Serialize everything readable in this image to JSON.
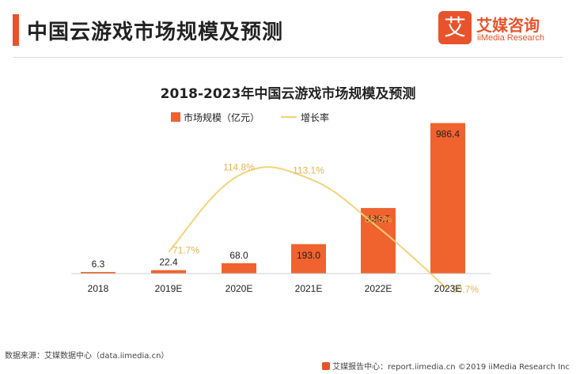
{
  "header": {
    "title": "中国云游戏市场规模及预测",
    "brand_logo_char": "艾",
    "brand_name": "艾媒咨询",
    "brand_en": "iiMedia Research"
  },
  "colors": {
    "accent": "#e8532b",
    "bar": "#f0622e",
    "line": "#f5d27a",
    "line_label": "#e3b44a"
  },
  "chart_data": {
    "type": "bar",
    "title": "2018-2023年中国云游戏市场规模及预测",
    "categories": [
      "2018",
      "2019E",
      "2020E",
      "2021E",
      "2022E",
      "2023E"
    ],
    "series": [
      {
        "name": "市场规模（亿元）",
        "type": "bar",
        "values": [
          6.3,
          22.4,
          68.0,
          193.0,
          429.7,
          986.4
        ]
      },
      {
        "name": "增长率",
        "type": "line",
        "values": [
          null,
          71.7,
          114.8,
          113.1,
          85.5,
          50.7
        ]
      }
    ],
    "bar_labels": [
      "6.3",
      "22.4",
      "68.0",
      "193.0",
      "429.7",
      "986.4"
    ],
    "line_labels": [
      "",
      "71.7%",
      "114.8%",
      "113.1%",
      "85.5%",
      "50.7%"
    ],
    "xlabel": "",
    "ylabel": "",
    "ylim": [
      0,
      1000
    ],
    "y2lim": [
      0,
      140
    ],
    "legend_position": "top-center",
    "grid": false
  },
  "footer": {
    "source": "数据来源：艾媒数据中心（data.iimedia.cn）",
    "report": "艾媒报告中心：report.iimedia.cn ©2019  iiMedia Research Inc"
  }
}
